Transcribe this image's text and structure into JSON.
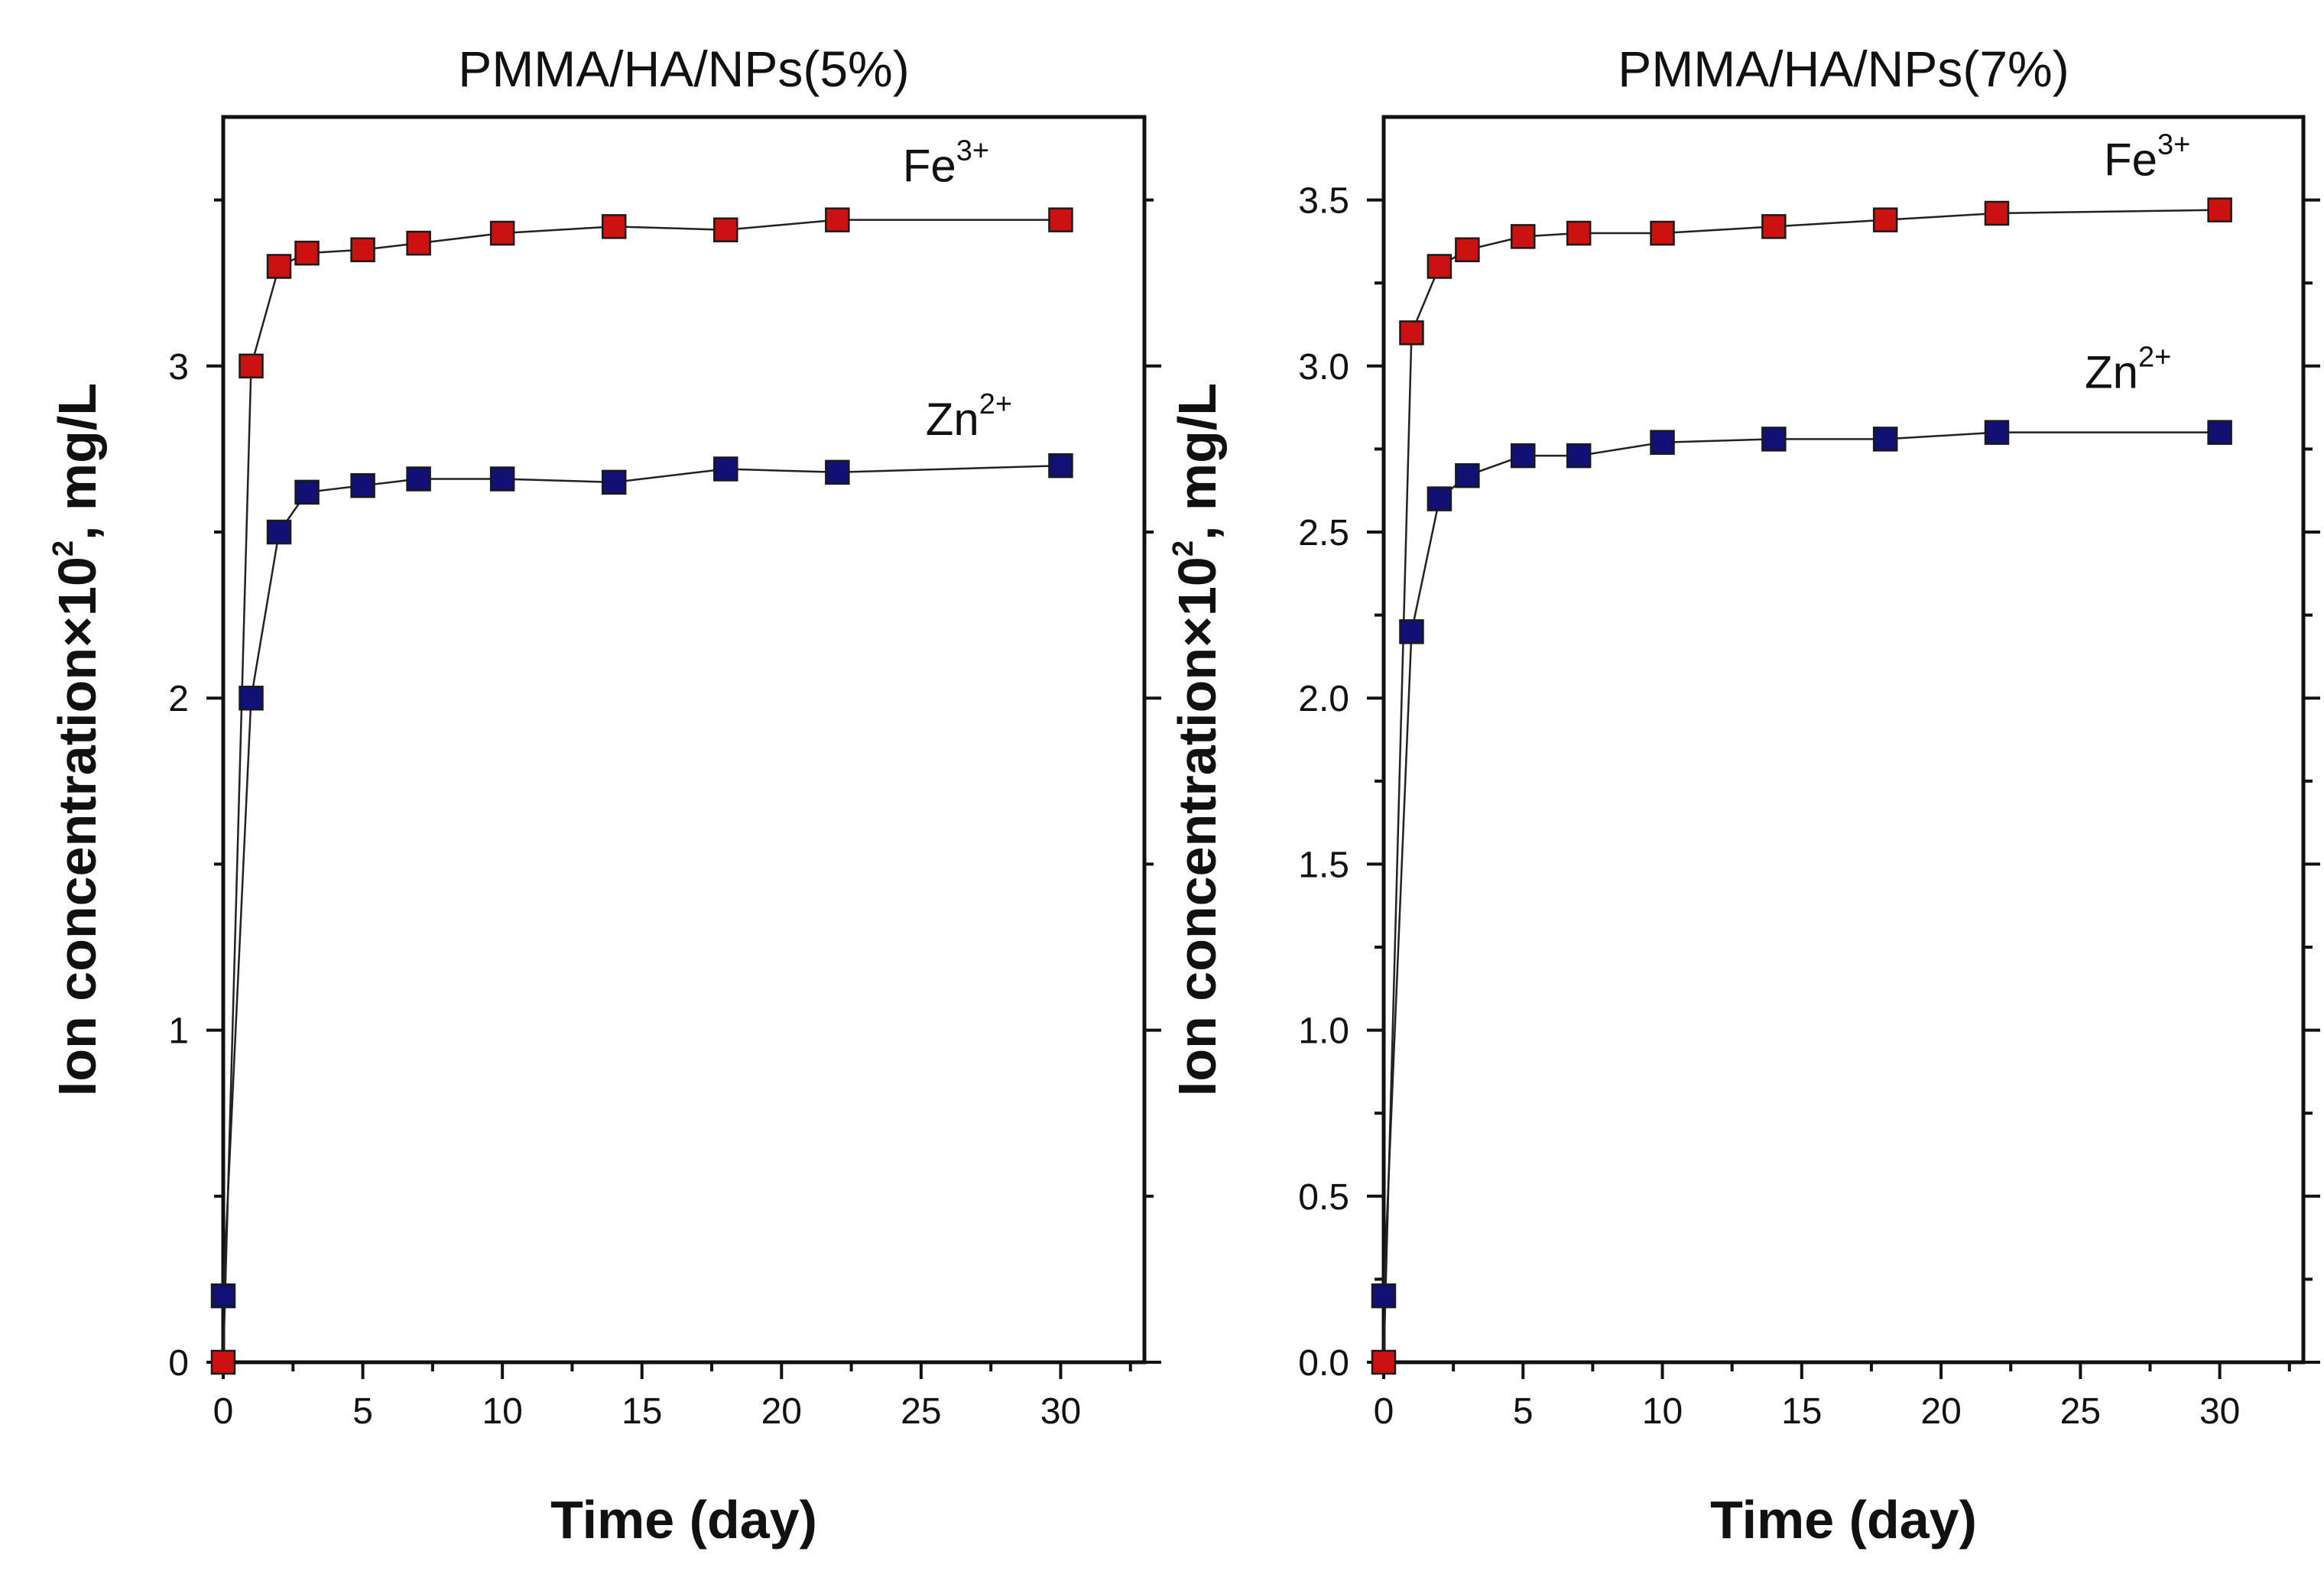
{
  "chart_data": [
    {
      "type": "line",
      "title": "PMMA/HA/NPs(5%)",
      "xlabel": "Time (day)",
      "ylabel": {
        "main": "Ion concentration×10",
        "sup": "2",
        "unit": ", mg/L"
      },
      "xlim": [
        0,
        33
      ],
      "ylim": [
        0,
        3.75
      ],
      "xticks": [
        0,
        5,
        10,
        15,
        20,
        25,
        30
      ],
      "xtick_labels": [
        "0",
        "5",
        "10",
        "15",
        "20",
        "25",
        "30"
      ],
      "yticks": [
        0,
        1,
        2,
        3
      ],
      "ytick_labels": [
        "0",
        "1",
        "2",
        "3"
      ],
      "x": [
        0,
        1,
        2,
        3,
        5,
        7,
        10,
        14,
        18,
        22,
        30
      ],
      "series": [
        {
          "name": "Fe3+",
          "label": "Fe",
          "sup": "3+",
          "color": "#cc1111",
          "values": [
            0,
            3.0,
            3.3,
            3.34,
            3.35,
            3.37,
            3.4,
            3.42,
            3.41,
            3.44,
            3.44
          ]
        },
        {
          "name": "Zn2+",
          "label": "Zn",
          "sup": "2+",
          "color": "#101075",
          "values": [
            0.2,
            2.0,
            2.5,
            2.62,
            2.64,
            2.66,
            2.66,
            2.65,
            2.69,
            2.68,
            2.7
          ]
        }
      ],
      "grid": false
    },
    {
      "type": "line",
      "title": "PMMA/HA/NPs(7%)",
      "xlabel": "Time (day)",
      "ylabel": {
        "main": "Ion concentration×10",
        "sup": "2",
        "unit": ", mg/L"
      },
      "xlim": [
        0,
        33
      ],
      "ylim": [
        0,
        3.75
      ],
      "xticks": [
        0,
        5,
        10,
        15,
        20,
        25,
        30
      ],
      "xtick_labels": [
        "0",
        "5",
        "10",
        "15",
        "20",
        "25",
        "30"
      ],
      "yticks": [
        0,
        0.5,
        1.0,
        1.5,
        2.0,
        2.5,
        3.0,
        3.5
      ],
      "ytick_labels": [
        "0.0",
        "0.5",
        "1.0",
        "1.5",
        "2.0",
        "2.5",
        "3.0",
        "3.5"
      ],
      "x": [
        0,
        1,
        2,
        3,
        5,
        7,
        10,
        14,
        18,
        22,
        30
      ],
      "series": [
        {
          "name": "Fe3+",
          "label": "Fe",
          "sup": "3+",
          "color": "#cc1111",
          "values": [
            0,
            3.1,
            3.3,
            3.35,
            3.39,
            3.4,
            3.4,
            3.42,
            3.44,
            3.46,
            3.47
          ]
        },
        {
          "name": "Zn2+",
          "label": "Zn",
          "sup": "2+",
          "color": "#101075",
          "values": [
            0.2,
            2.2,
            2.6,
            2.67,
            2.73,
            2.73,
            2.77,
            2.78,
            2.78,
            2.8,
            2.8
          ]
        }
      ],
      "grid": false
    }
  ]
}
